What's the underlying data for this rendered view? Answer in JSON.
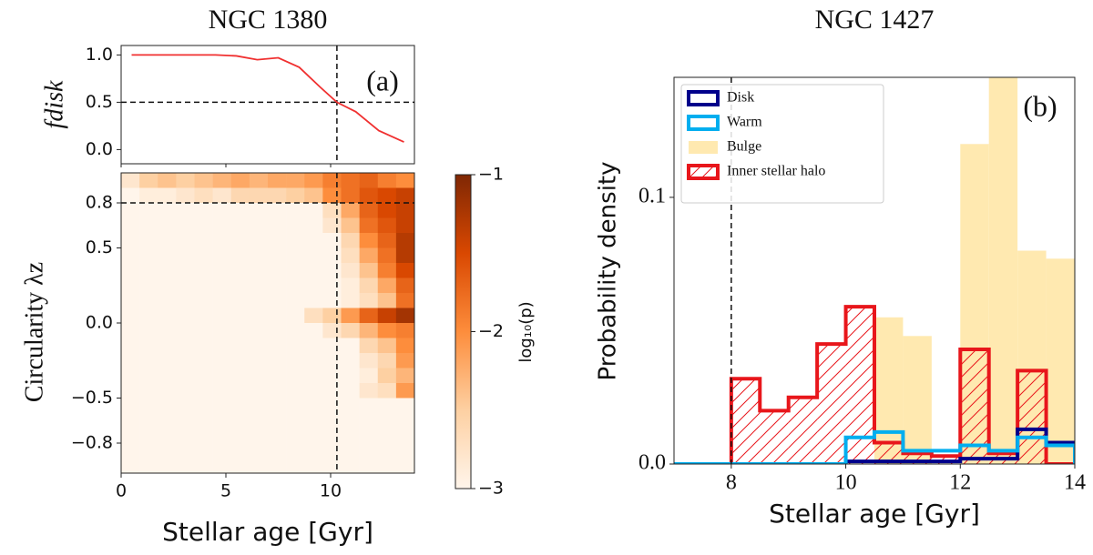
{
  "chart_data": [
    {
      "type": "line",
      "title": "NGC 1380",
      "ylabel": "fdisk",
      "annotation": "(a)",
      "color": "#f03030",
      "x": [
        0.5,
        1.5,
        2.5,
        3.5,
        4.5,
        5.5,
        6.5,
        7.5,
        8.5,
        9.5,
        10.3,
        11.2,
        12.3,
        13.5
      ],
      "values": [
        1,
        1,
        1,
        1,
        1,
        0.99,
        0.95,
        0.97,
        0.87,
        0.66,
        0.5,
        0.4,
        0.2,
        0.08
      ],
      "xlim": [
        0,
        14
      ],
      "ylim": [
        -0.15,
        1.1
      ],
      "yticks": [
        {
          "value": 0,
          "label": "0.0"
        },
        0.5,
        {
          "value": 1,
          "label": "1.0"
        }
      ],
      "ref_x": 10.3,
      "ref_y": 0.5
    },
    {
      "type": "heatmap",
      "xlabel": "Stellar age [Gyr]",
      "ylabel": "Circularity λz",
      "colorbar_label": "log₁₀(p)",
      "xlim": [
        0,
        14
      ],
      "ylim": [
        -1,
        1
      ],
      "xticks": [
        0,
        5,
        10
      ],
      "yticks": [
        {
          "value": -0.8,
          "label": "−0.8"
        },
        {
          "value": -0.5,
          "label": "−0.5"
        },
        {
          "value": 0,
          "label": "0.0"
        },
        0.5,
        0.8
      ],
      "ref_x": 10.3,
      "ref_y": 0.8,
      "x_edges": [
        0,
        0.875,
        1.75,
        2.625,
        3.5,
        4.375,
        5.25,
        6.125,
        7,
        7.875,
        8.75,
        9.625,
        10.5,
        11.375,
        12.25,
        13.125,
        14
      ],
      "y_edges": [
        1,
        0.9,
        0.8,
        0.7,
        0.6,
        0.5,
        0.4,
        0.3,
        0.2,
        0.1,
        0,
        -0.1,
        -0.2,
        -0.3,
        -0.4,
        -0.5,
        -0.6,
        -0.7,
        -0.8,
        -0.9,
        -1
      ],
      "z": [
        [
          -2.8,
          -2.5,
          -2.4,
          -2.5,
          -2.4,
          -2.3,
          -2.2,
          -2.3,
          -2.2,
          -2.2,
          -2.1,
          -1.9,
          -1.8,
          -1.7,
          -1.9,
          -2.0
        ],
        [
          -3,
          -2.9,
          -2.9,
          -2.8,
          -2.7,
          -2.8,
          -2.6,
          -2.6,
          -2.6,
          -2.5,
          -2.4,
          -2.0,
          -1.8,
          -1.6,
          -1.5,
          -1.4
        ],
        [
          -3,
          -3,
          -3,
          -3,
          -3,
          -3,
          -3,
          -3,
          -3,
          -3,
          -3,
          -2.7,
          -2.2,
          -1.7,
          -1.5,
          -1.4
        ],
        [
          -3,
          -3,
          -3,
          -3,
          -3,
          -3,
          -3,
          -3,
          -3,
          -3,
          -3,
          -2.8,
          -2.4,
          -1.8,
          -1.6,
          -1.4
        ],
        [
          -3,
          -3,
          -3,
          -3,
          -3,
          -3,
          -3,
          -3,
          -3,
          -3,
          -3,
          -3,
          -2.6,
          -2.0,
          -1.7,
          -1.3
        ],
        [
          -3,
          -3,
          -3,
          -3,
          -3,
          -3,
          -3,
          -3,
          -3,
          -3,
          -3,
          -3,
          -2.7,
          -2.2,
          -1.8,
          -1.3
        ],
        [
          -3,
          -3,
          -3,
          -3,
          -3,
          -3,
          -3,
          -3,
          -3,
          -3,
          -3,
          -3,
          -2.8,
          -2.4,
          -1.9,
          -1.5
        ],
        [
          -3,
          -3,
          -3,
          -3,
          -3,
          -3,
          -3,
          -3,
          -3,
          -3,
          -3,
          -3,
          -2.9,
          -2.6,
          -2.2,
          -1.7
        ],
        [
          -3,
          -3,
          -3,
          -3,
          -3,
          -3,
          -3,
          -3,
          -3,
          -3,
          -3,
          -3,
          -2.9,
          -2.7,
          -2.4,
          -1.8
        ],
        [
          -3,
          -3,
          -3,
          -3,
          -3,
          -3,
          -3,
          -3,
          -3,
          -3,
          -2.7,
          -2.5,
          -2.1,
          -1.7,
          -1.4,
          -1.2
        ],
        [
          -3,
          -3,
          -3,
          -3,
          -3,
          -3,
          -3,
          -3,
          -3,
          -3,
          -3,
          -2.8,
          -2.6,
          -2.3,
          -2.0,
          -1.9
        ],
        [
          -3,
          -3,
          -3,
          -3,
          -3,
          -3,
          -3,
          -3,
          -3,
          -3,
          -3,
          -3,
          -3,
          -2.6,
          -2.4,
          -2.0
        ],
        [
          -3,
          -3,
          -3,
          -3,
          -3,
          -3,
          -3,
          -3,
          -3,
          -3,
          -3,
          -3,
          -3,
          -2.8,
          -2.6,
          -2.1
        ],
        [
          -3,
          -3,
          -3,
          -3,
          -3,
          -3,
          -3,
          -3,
          -3,
          -3,
          -3,
          -3,
          -3,
          -2.9,
          -2.5,
          -2.3
        ],
        [
          -3,
          -3,
          -3,
          -3,
          -3,
          -3,
          -3,
          -3,
          -3,
          -3,
          -3,
          -3,
          -3,
          -2.8,
          -2.7,
          -2.1
        ],
        [
          -3,
          -3,
          -3,
          -3,
          -3,
          -3,
          -3,
          -3,
          -3,
          -3,
          -3,
          -3,
          -3,
          -3,
          -3,
          -3
        ],
        [
          -3,
          -3,
          -3,
          -3,
          -3,
          -3,
          -3,
          -3,
          -3,
          -3,
          -3,
          -3,
          -3,
          -3,
          -3,
          -3
        ],
        [
          -3,
          -3,
          -3,
          -3,
          -3,
          -3,
          -3,
          -3,
          -3,
          -3,
          -3,
          -3,
          -3,
          -3,
          -3,
          -3
        ],
        [
          -3,
          -3,
          -3,
          -3,
          -3,
          -3,
          -3,
          -3,
          -3,
          -3,
          -3,
          -3,
          -3,
          -3,
          -3,
          -3
        ],
        [
          -3,
          -3,
          -3,
          -3,
          -3,
          -3,
          -3,
          -3,
          -3,
          -3,
          -3,
          -3,
          -3,
          -3,
          -3,
          -3
        ]
      ],
      "zlim": [
        -3,
        -1
      ],
      "zticks": [
        {
          "value": -1,
          "label": "−1"
        },
        {
          "value": -2,
          "label": "−2"
        },
        {
          "value": -3,
          "label": "−3"
        }
      ],
      "colormap": [
        "#fff5eb",
        "#fdd0a2",
        "#fd8d3c",
        "#d94801",
        "#7f2704"
      ]
    },
    {
      "type": "step_histogram",
      "title": "NGC 1427",
      "xlabel": "Stellar age [Gyr]",
      "ylabel": "Probability density",
      "annotation": "(b)",
      "legend": "upper left",
      "ref_x": 8,
      "xlim": [
        7,
        14
      ],
      "ylim": [
        0,
        0.145
      ],
      "xticks": [
        8,
        10,
        12,
        14
      ],
      "yticks": [
        {
          "value": 0,
          "label": "0.0"
        },
        0.1
      ],
      "bins": [
        7,
        7.5,
        8,
        8.5,
        9,
        9.5,
        10,
        10.5,
        11,
        11.5,
        12,
        12.5,
        13,
        13.5,
        14
      ],
      "series": [
        {
          "name": "Disk",
          "color": "#00008b",
          "style": "step",
          "values": [
            0,
            0,
            0,
            0,
            0,
            0,
            0.001,
            0.001,
            0.001,
            0.001,
            0.002,
            0.002,
            0.013,
            0.008
          ]
        },
        {
          "name": "Warm",
          "color": "#00aeef",
          "style": "step",
          "values": [
            0,
            0,
            0,
            0,
            0,
            0,
            0.01,
            0.012,
            0.005,
            0.005,
            0.007,
            0.005,
            0.01,
            0.007
          ]
        },
        {
          "name": "Bulge",
          "color": "#ffe9b0",
          "style": "filled",
          "values": [
            0,
            0,
            0,
            0,
            0,
            0,
            0,
            0.055,
            0.048,
            0,
            0.12,
            0.16,
            0.08,
            0.077
          ]
        },
        {
          "name": "Inner stellar halo",
          "color": "#e8161b",
          "style": "hatched",
          "values": [
            0,
            0,
            0.032,
            0.02,
            0.025,
            0.045,
            0.059,
            0.008,
            0.004,
            0.003,
            0.043,
            0.004,
            0.035,
            0
          ]
        }
      ]
    }
  ]
}
